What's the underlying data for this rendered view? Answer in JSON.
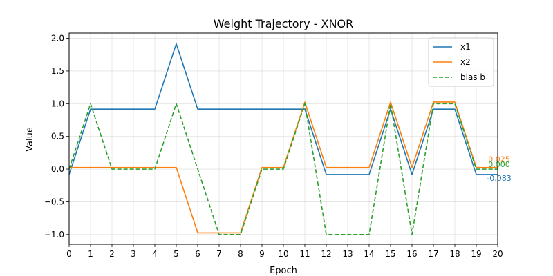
{
  "chart_data": {
    "type": "line",
    "title": "Weight Trajectory - XNOR",
    "xlabel": "Epoch",
    "ylabel": "Value",
    "xlim": [
      0,
      20
    ],
    "ylim": [
      -1.15,
      2.08
    ],
    "x_ticks": [
      0,
      1,
      2,
      3,
      4,
      5,
      6,
      7,
      8,
      9,
      10,
      11,
      12,
      13,
      14,
      15,
      16,
      17,
      18,
      19,
      20
    ],
    "y_ticks": [
      -1.0,
      -0.5,
      0.0,
      0.5,
      1.0,
      1.5,
      2.0
    ],
    "y_tick_labels": [
      "−1.0",
      "−0.5",
      "0.0",
      "0.5",
      "1.0",
      "1.5",
      "2.0"
    ],
    "grid": true,
    "legend_position": "top-right",
    "x": [
      0,
      1,
      2,
      3,
      4,
      5,
      6,
      7,
      8,
      9,
      10,
      11,
      12,
      13,
      14,
      15,
      16,
      17,
      18,
      19,
      20
    ],
    "series": [
      {
        "name": "x1",
        "color": "#1f77b4",
        "style": "solid",
        "values": [
          -0.083,
          0.917,
          0.917,
          0.917,
          0.917,
          1.917,
          0.917,
          0.917,
          0.917,
          0.917,
          0.917,
          0.917,
          -0.083,
          -0.083,
          -0.083,
          0.917,
          -0.083,
          0.917,
          0.917,
          -0.083,
          -0.083
        ],
        "end_label": "-0.083"
      },
      {
        "name": "x2",
        "color": "#ff7f0e",
        "style": "solid",
        "values": [
          0.025,
          0.025,
          0.025,
          0.025,
          0.025,
          0.025,
          -0.975,
          -0.975,
          -0.975,
          0.025,
          0.025,
          1.025,
          0.025,
          0.025,
          0.025,
          1.025,
          0.025,
          1.025,
          1.025,
          0.025,
          0.025
        ],
        "end_label": "0.025"
      },
      {
        "name": "bias b",
        "color": "#2ca02c",
        "style": "dashed",
        "values": [
          0.0,
          1.0,
          0.0,
          0.0,
          0.0,
          1.0,
          0.0,
          -1.0,
          -1.0,
          0.0,
          0.0,
          1.0,
          -1.0,
          -1.0,
          -1.0,
          1.0,
          -1.0,
          1.0,
          1.0,
          0.0,
          0.0
        ],
        "end_label": "0.000"
      }
    ]
  }
}
